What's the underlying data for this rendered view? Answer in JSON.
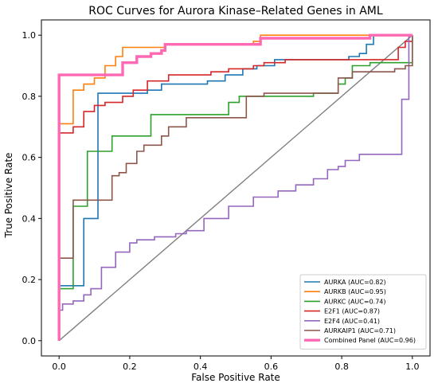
{
  "chart_data": {
    "type": "line",
    "title": "ROC Curves for Aurora Kinase–Related Genes in AML",
    "xlabel": "False Positive Rate",
    "ylabel": "True Positive Rate",
    "xlim": [
      -0.05,
      1.05
    ],
    "ylim": [
      -0.05,
      1.05
    ],
    "xticks": [
      "0.0",
      "0.2",
      "0.4",
      "0.6",
      "0.8",
      "1.0"
    ],
    "yticks": [
      "0.0",
      "0.2",
      "0.4",
      "0.6",
      "0.8",
      "1.0"
    ],
    "legend_position": "lower-right",
    "grid": false,
    "series": [
      {
        "name": "AURKA (AUC=0.82)",
        "color": "#1f77b4",
        "width": 1.6,
        "points": [
          [
            0,
            0
          ],
          [
            0,
            0.18
          ],
          [
            0.07,
            0.18
          ],
          [
            0.07,
            0.4
          ],
          [
            0.11,
            0.4
          ],
          [
            0.11,
            0.81
          ],
          [
            0.25,
            0.81
          ],
          [
            0.25,
            0.82
          ],
          [
            0.29,
            0.82
          ],
          [
            0.29,
            0.84
          ],
          [
            0.42,
            0.84
          ],
          [
            0.42,
            0.85
          ],
          [
            0.47,
            0.85
          ],
          [
            0.47,
            0.87
          ],
          [
            0.52,
            0.87
          ],
          [
            0.52,
            0.89
          ],
          [
            0.56,
            0.89
          ],
          [
            0.56,
            0.9
          ],
          [
            0.61,
            0.9
          ],
          [
            0.61,
            0.92
          ],
          [
            0.82,
            0.92
          ],
          [
            0.82,
            0.93
          ],
          [
            0.85,
            0.93
          ],
          [
            0.85,
            0.94
          ],
          [
            0.87,
            0.94
          ],
          [
            0.87,
            0.97
          ],
          [
            0.89,
            0.97
          ],
          [
            0.89,
            1.0
          ],
          [
            1,
            1.0
          ]
        ]
      },
      {
        "name": "AURKB (AUC=0.95)",
        "color": "#ff7f0e",
        "width": 1.6,
        "points": [
          [
            0,
            0
          ],
          [
            0,
            0.71
          ],
          [
            0.04,
            0.71
          ],
          [
            0.04,
            0.82
          ],
          [
            0.07,
            0.82
          ],
          [
            0.07,
            0.84
          ],
          [
            0.1,
            0.84
          ],
          [
            0.1,
            0.86
          ],
          [
            0.13,
            0.86
          ],
          [
            0.13,
            0.9
          ],
          [
            0.16,
            0.9
          ],
          [
            0.16,
            0.93
          ],
          [
            0.18,
            0.93
          ],
          [
            0.18,
            0.96
          ],
          [
            0.3,
            0.96
          ],
          [
            0.3,
            0.97
          ],
          [
            0.55,
            0.97
          ],
          [
            0.55,
            0.98
          ],
          [
            0.57,
            0.98
          ],
          [
            0.57,
            1.0
          ],
          [
            1,
            1.0
          ]
        ]
      },
      {
        "name": "AURKC (AUC=0.74)",
        "color": "#2ca02c",
        "width": 1.6,
        "points": [
          [
            0,
            0
          ],
          [
            0,
            0.17
          ],
          [
            0.04,
            0.17
          ],
          [
            0.04,
            0.44
          ],
          [
            0.08,
            0.44
          ],
          [
            0.08,
            0.62
          ],
          [
            0.15,
            0.62
          ],
          [
            0.15,
            0.67
          ],
          [
            0.26,
            0.67
          ],
          [
            0.26,
            0.74
          ],
          [
            0.48,
            0.74
          ],
          [
            0.48,
            0.78
          ],
          [
            0.51,
            0.78
          ],
          [
            0.51,
            0.8
          ],
          [
            0.72,
            0.8
          ],
          [
            0.72,
            0.81
          ],
          [
            0.79,
            0.81
          ],
          [
            0.79,
            0.84
          ],
          [
            0.81,
            0.84
          ],
          [
            0.81,
            0.86
          ],
          [
            0.83,
            0.86
          ],
          [
            0.83,
            0.9
          ],
          [
            0.88,
            0.9
          ],
          [
            0.88,
            0.91
          ],
          [
            1,
            0.91
          ],
          [
            1,
            1.0
          ]
        ]
      },
      {
        "name": "E2F1 (AUC=0.87)",
        "color": "#d62728",
        "width": 1.6,
        "points": [
          [
            0,
            0
          ],
          [
            0,
            0.68
          ],
          [
            0.04,
            0.68
          ],
          [
            0.04,
            0.7
          ],
          [
            0.07,
            0.7
          ],
          [
            0.07,
            0.75
          ],
          [
            0.1,
            0.75
          ],
          [
            0.1,
            0.77
          ],
          [
            0.13,
            0.77
          ],
          [
            0.13,
            0.78
          ],
          [
            0.18,
            0.78
          ],
          [
            0.18,
            0.8
          ],
          [
            0.21,
            0.8
          ],
          [
            0.21,
            0.82
          ],
          [
            0.25,
            0.82
          ],
          [
            0.25,
            0.85
          ],
          [
            0.31,
            0.85
          ],
          [
            0.31,
            0.87
          ],
          [
            0.43,
            0.87
          ],
          [
            0.43,
            0.88
          ],
          [
            0.48,
            0.88
          ],
          [
            0.48,
            0.89
          ],
          [
            0.55,
            0.89
          ],
          [
            0.55,
            0.9
          ],
          [
            0.58,
            0.9
          ],
          [
            0.58,
            0.91
          ],
          [
            0.64,
            0.91
          ],
          [
            0.64,
            0.92
          ],
          [
            0.96,
            0.92
          ],
          [
            0.96,
            0.96
          ],
          [
            0.98,
            0.96
          ],
          [
            0.98,
            0.98
          ],
          [
            1,
            0.98
          ],
          [
            1,
            1.0
          ]
        ]
      },
      {
        "name": "E2F4 (AUC=0.41)",
        "color": "#9467bd",
        "width": 1.6,
        "points": [
          [
            0,
            0
          ],
          [
            0,
            0.1
          ],
          [
            0.01,
            0.1
          ],
          [
            0.01,
            0.12
          ],
          [
            0.04,
            0.12
          ],
          [
            0.04,
            0.13
          ],
          [
            0.07,
            0.13
          ],
          [
            0.07,
            0.15
          ],
          [
            0.09,
            0.15
          ],
          [
            0.09,
            0.17
          ],
          [
            0.12,
            0.17
          ],
          [
            0.12,
            0.24
          ],
          [
            0.16,
            0.24
          ],
          [
            0.16,
            0.29
          ],
          [
            0.2,
            0.29
          ],
          [
            0.2,
            0.32
          ],
          [
            0.22,
            0.32
          ],
          [
            0.22,
            0.33
          ],
          [
            0.27,
            0.33
          ],
          [
            0.27,
            0.34
          ],
          [
            0.33,
            0.34
          ],
          [
            0.33,
            0.35
          ],
          [
            0.36,
            0.35
          ],
          [
            0.36,
            0.36
          ],
          [
            0.41,
            0.36
          ],
          [
            0.41,
            0.4
          ],
          [
            0.48,
            0.4
          ],
          [
            0.48,
            0.44
          ],
          [
            0.55,
            0.44
          ],
          [
            0.55,
            0.47
          ],
          [
            0.62,
            0.47
          ],
          [
            0.62,
            0.49
          ],
          [
            0.67,
            0.49
          ],
          [
            0.67,
            0.51
          ],
          [
            0.72,
            0.51
          ],
          [
            0.72,
            0.53
          ],
          [
            0.76,
            0.53
          ],
          [
            0.76,
            0.56
          ],
          [
            0.79,
            0.56
          ],
          [
            0.79,
            0.57
          ],
          [
            0.81,
            0.57
          ],
          [
            0.81,
            0.59
          ],
          [
            0.85,
            0.59
          ],
          [
            0.85,
            0.61
          ],
          [
            0.97,
            0.61
          ],
          [
            0.97,
            0.79
          ],
          [
            0.99,
            0.79
          ],
          [
            0.99,
            1.0
          ],
          [
            1,
            1.0
          ]
        ]
      },
      {
        "name": "AURKAIP1 (AUC=0.71)",
        "color": "#8c564b",
        "width": 1.6,
        "points": [
          [
            0,
            0
          ],
          [
            0,
            0.27
          ],
          [
            0.04,
            0.27
          ],
          [
            0.04,
            0.46
          ],
          [
            0.15,
            0.46
          ],
          [
            0.15,
            0.54
          ],
          [
            0.17,
            0.54
          ],
          [
            0.17,
            0.55
          ],
          [
            0.19,
            0.55
          ],
          [
            0.19,
            0.58
          ],
          [
            0.22,
            0.58
          ],
          [
            0.22,
            0.62
          ],
          [
            0.24,
            0.62
          ],
          [
            0.24,
            0.64
          ],
          [
            0.29,
            0.64
          ],
          [
            0.29,
            0.67
          ],
          [
            0.31,
            0.67
          ],
          [
            0.31,
            0.7
          ],
          [
            0.36,
            0.7
          ],
          [
            0.36,
            0.73
          ],
          [
            0.53,
            0.73
          ],
          [
            0.53,
            0.8
          ],
          [
            0.58,
            0.8
          ],
          [
            0.58,
            0.81
          ],
          [
            0.79,
            0.81
          ],
          [
            0.79,
            0.86
          ],
          [
            0.83,
            0.86
          ],
          [
            0.83,
            0.88
          ],
          [
            0.95,
            0.88
          ],
          [
            0.95,
            0.89
          ],
          [
            0.98,
            0.89
          ],
          [
            0.98,
            0.9
          ],
          [
            1,
            0.9
          ],
          [
            1,
            1.0
          ]
        ]
      },
      {
        "name": "Combined Panel (AUC=0.96)",
        "color": "#ff69b4",
        "width": 3.4,
        "points": [
          [
            0,
            0
          ],
          [
            0,
            0.87
          ],
          [
            0.18,
            0.87
          ],
          [
            0.18,
            0.91
          ],
          [
            0.22,
            0.91
          ],
          [
            0.22,
            0.93
          ],
          [
            0.26,
            0.93
          ],
          [
            0.26,
            0.94
          ],
          [
            0.29,
            0.94
          ],
          [
            0.29,
            0.95
          ],
          [
            0.3,
            0.95
          ],
          [
            0.3,
            0.97
          ],
          [
            0.57,
            0.97
          ],
          [
            0.57,
            0.99
          ],
          [
            0.88,
            0.99
          ],
          [
            0.88,
            1.0
          ],
          [
            1,
            1.0
          ]
        ]
      }
    ],
    "reference_line": {
      "color": "#808080",
      "width": 1.4,
      "points": [
        [
          0,
          0
        ],
        [
          1,
          1
        ]
      ]
    }
  }
}
